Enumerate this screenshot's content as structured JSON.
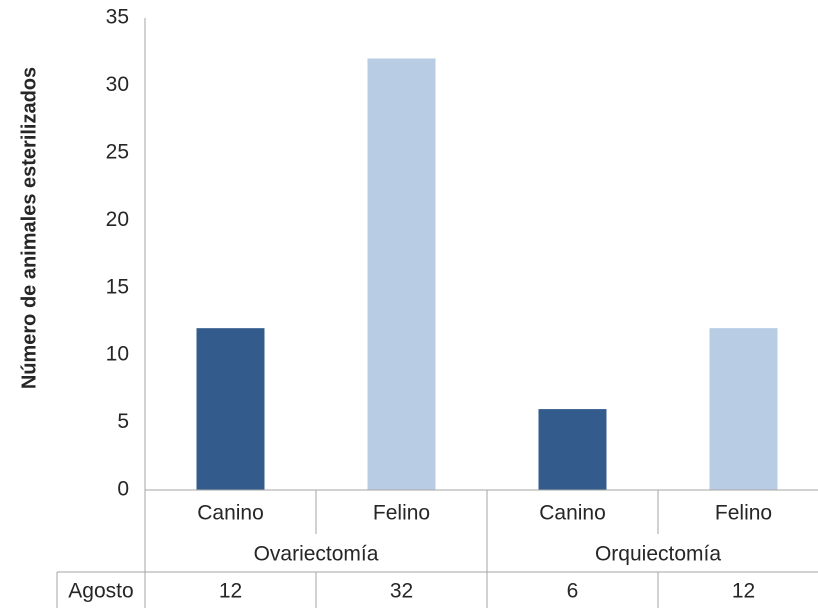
{
  "chart_data": {
    "type": "bar",
    "title": "",
    "xlabel": "",
    "ylabel": "Número de animales esterilizados",
    "ylim": [
      0,
      35
    ],
    "yticks": [
      0,
      5,
      10,
      15,
      20,
      25,
      30,
      35
    ],
    "grid": false,
    "legend": "none",
    "categories": [
      "Canino",
      "Felino",
      "Canino",
      "Felino"
    ],
    "groups": [
      {
        "label": "Ovariectomía",
        "categories": [
          "Canino",
          "Felino"
        ]
      },
      {
        "label": "Orquiectomía",
        "categories": [
          "Canino",
          "Felino"
        ]
      }
    ],
    "series": [
      {
        "name": "Agosto",
        "values": [
          12,
          32,
          6,
          12
        ]
      }
    ],
    "colors": {
      "Canino": "#335c8d",
      "Felino": "#b8cce4",
      "axis": "#a6a6a6"
    }
  }
}
